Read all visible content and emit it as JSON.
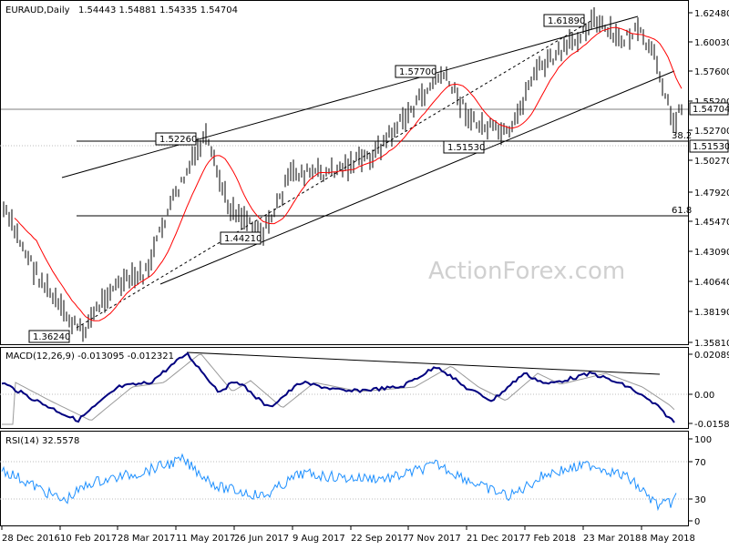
{
  "panels": {
    "price": {
      "title": "EURAUD,Daily",
      "ohlc": "1.54443 1.54881 1.54335 1.54704",
      "ticks": [
        "1.62480",
        "1.60030",
        "1.57600",
        "1.55200",
        "1.52700",
        "1.50270",
        "1.47920",
        "1.45470",
        "1.43090",
        "1.40640",
        "1.38190",
        "1.35810"
      ],
      "last_price": "1.54704",
      "level_label": "1.51530",
      "watermark": "ActionForex.com",
      "fib_labels": [
        "38.2",
        "61.8"
      ],
      "annotations": [
        "1.61890",
        "1.57700",
        "1.52260",
        "1.51530",
        "1.44210",
        "1.36240"
      ]
    },
    "macd": {
      "title": "MACD(12,26,9) -0.013095 -0.012321",
      "ticks": [
        "0.020896",
        "0.00",
        "-0.015835"
      ]
    },
    "rsi": {
      "title": "RSI(14) 32.5578",
      "ticks": [
        "100",
        "70",
        "30",
        "0"
      ]
    }
  },
  "dates": [
    "28 Dec 2016",
    "10 Feb 2017",
    "28 Mar 2017",
    "11 May 2017",
    "26 Jun 2017",
    "9 Aug 2017",
    "22 Sep 2017",
    "7 Nov 2017",
    "21 Dec 2017",
    "7 Feb 2018",
    "23 Mar 2018",
    "8 May 2018"
  ],
  "chart_data": {
    "type": "line",
    "x": [
      "28 Dec 2016",
      "10 Feb 2017",
      "28 Mar 2017",
      "11 May 2017",
      "26 Jun 2017",
      "9 Aug 2017",
      "22 Sep 2017",
      "7 Nov 2017",
      "21 Dec 2017",
      "7 Feb 2018",
      "23 Mar 2018",
      "8 May 2018"
    ],
    "series": [
      {
        "name": "EURAUD",
        "values": [
          1.45,
          1.38,
          1.41,
          1.51,
          1.46,
          1.5,
          1.5,
          1.53,
          1.53,
          1.58,
          1.61,
          1.57
        ]
      },
      {
        "name": "MACD",
        "values": [
          0.003,
          -0.011,
          -0.003,
          0.019,
          -0.002,
          0.0,
          -0.002,
          0.014,
          0.004,
          0.006,
          0.01,
          -0.004
        ]
      },
      {
        "name": "RSI(14)",
        "values": [
          55,
          30,
          48,
          72,
          45,
          52,
          50,
          62,
          48,
          58,
          65,
          40
        ]
      }
    ],
    "ylim": [
      1.3581,
      1.6248
    ]
  }
}
